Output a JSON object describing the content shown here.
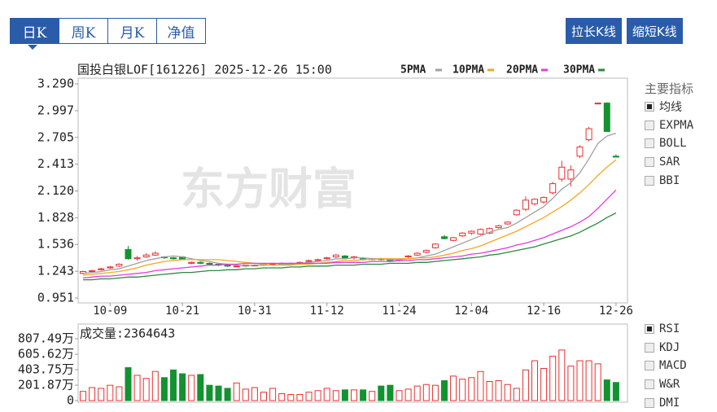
{
  "tabs": [
    "日K",
    "周K",
    "月K",
    "净值"
  ],
  "buttons": [
    "拉长K线",
    "缩短K线"
  ],
  "indicators": {
    "title": "主要指标",
    "main": [
      "均线",
      "EXPMA",
      "BOLL",
      "SAR",
      "BBI"
    ],
    "sub": [
      "RSI",
      "KDJ",
      "MACD",
      "W&R",
      "DMI"
    ]
  },
  "chart_data": [
    {
      "type": "candlestick",
      "title": "国投白银LOF[161226] 2025-12-26 15:00",
      "watermark": "东方财富",
      "up_color": "#e8302f",
      "down_color": "#13932f",
      "categories": [
        null,
        null,
        null,
        "10-09",
        null,
        null,
        null,
        null,
        null,
        null,
        null,
        "10-21",
        null,
        null,
        null,
        null,
        null,
        null,
        null,
        "10-31",
        null,
        null,
        null,
        null,
        null,
        null,
        null,
        "11-12",
        null,
        null,
        null,
        null,
        null,
        null,
        null,
        "11-24",
        null,
        null,
        null,
        null,
        null,
        null,
        null,
        "12-04",
        null,
        null,
        null,
        null,
        null,
        null,
        null,
        "12-16",
        null,
        null,
        null,
        null,
        null,
        null,
        null,
        "12-26"
      ],
      "open": [
        1.22,
        1.24,
        1.26,
        1.28,
        1.3,
        1.48,
        1.38,
        1.4,
        1.42,
        1.4,
        1.39,
        1.4,
        1.33,
        1.34,
        1.33,
        1.32,
        1.31,
        1.3,
        1.3,
        1.31,
        1.31,
        1.32,
        1.32,
        1.33,
        1.33,
        1.35,
        1.36,
        1.38,
        1.4,
        1.41,
        1.39,
        1.38,
        1.37,
        1.38,
        1.37,
        1.36,
        1.4,
        1.42,
        1.45,
        1.5,
        1.62,
        1.58,
        1.63,
        1.66,
        1.65,
        1.66,
        1.72,
        1.76,
        1.86,
        1.92,
        1.98,
        2.0,
        2.1,
        2.25,
        2.25,
        2.5,
        2.68,
        3.08,
        3.08,
        2.5
      ],
      "high": [
        1.25,
        1.26,
        1.28,
        1.3,
        1.33,
        1.52,
        1.41,
        1.44,
        1.46,
        1.41,
        1.4,
        1.41,
        1.35,
        1.35,
        1.34,
        1.33,
        1.32,
        1.31,
        1.31,
        1.32,
        1.33,
        1.33,
        1.34,
        1.34,
        1.35,
        1.37,
        1.38,
        1.4,
        1.43,
        1.42,
        1.41,
        1.39,
        1.39,
        1.39,
        1.38,
        1.38,
        1.42,
        1.45,
        1.48,
        1.55,
        1.64,
        1.62,
        1.67,
        1.69,
        1.71,
        1.72,
        1.75,
        1.79,
        1.92,
        2.06,
        2.04,
        2.06,
        2.22,
        2.45,
        2.4,
        2.62,
        2.82,
        3.08,
        3.09,
        2.52
      ],
      "low": [
        1.21,
        1.23,
        1.25,
        1.27,
        1.29,
        1.37,
        1.36,
        1.39,
        1.41,
        1.38,
        1.37,
        1.37,
        1.32,
        1.32,
        1.31,
        1.3,
        1.29,
        1.29,
        1.29,
        1.3,
        1.3,
        1.31,
        1.31,
        1.32,
        1.32,
        1.34,
        1.35,
        1.37,
        1.39,
        1.38,
        1.37,
        1.36,
        1.36,
        1.36,
        1.35,
        1.35,
        1.39,
        1.41,
        1.44,
        1.49,
        1.59,
        1.57,
        1.62,
        1.64,
        1.64,
        1.65,
        1.71,
        1.75,
        1.85,
        1.9,
        1.96,
        1.98,
        2.08,
        2.22,
        2.17,
        2.48,
        2.66,
        3.08,
        2.77,
        2.49
      ],
      "close": [
        1.24,
        1.25,
        1.27,
        1.29,
        1.32,
        1.38,
        1.39,
        1.42,
        1.44,
        1.39,
        1.38,
        1.37,
        1.34,
        1.33,
        1.32,
        1.31,
        1.3,
        1.3,
        1.31,
        1.31,
        1.32,
        1.32,
        1.33,
        1.33,
        1.34,
        1.36,
        1.37,
        1.39,
        1.42,
        1.39,
        1.4,
        1.37,
        1.38,
        1.37,
        1.36,
        1.37,
        1.41,
        1.44,
        1.47,
        1.54,
        1.6,
        1.61,
        1.66,
        1.68,
        1.7,
        1.71,
        1.74,
        1.78,
        1.91,
        2.02,
        2.03,
        2.05,
        2.2,
        2.38,
        2.35,
        2.6,
        2.8,
        3.08,
        2.77,
        2.49
      ],
      "series": [
        {
          "name": "5PMA",
          "color": "#a0a0a0",
          "values": [
            1.22,
            1.23,
            1.24,
            1.26,
            1.27,
            1.3,
            1.33,
            1.36,
            1.38,
            1.4,
            1.41,
            1.4,
            1.38,
            1.36,
            1.35,
            1.33,
            1.32,
            1.31,
            1.3,
            1.31,
            1.31,
            1.31,
            1.32,
            1.32,
            1.33,
            1.34,
            1.35,
            1.36,
            1.38,
            1.38,
            1.39,
            1.39,
            1.38,
            1.38,
            1.37,
            1.37,
            1.38,
            1.39,
            1.41,
            1.43,
            1.47,
            1.51,
            1.55,
            1.59,
            1.63,
            1.67,
            1.7,
            1.72,
            1.77,
            1.83,
            1.89,
            1.95,
            2.04,
            2.14,
            2.21,
            2.32,
            2.47,
            2.64,
            2.72,
            2.75
          ]
        },
        {
          "name": "10PMA",
          "color": "#f5a623",
          "values": [
            1.2,
            1.21,
            1.22,
            1.23,
            1.24,
            1.26,
            1.28,
            1.31,
            1.33,
            1.35,
            1.36,
            1.37,
            1.37,
            1.37,
            1.37,
            1.37,
            1.36,
            1.35,
            1.34,
            1.33,
            1.32,
            1.31,
            1.31,
            1.31,
            1.32,
            1.32,
            1.33,
            1.34,
            1.35,
            1.36,
            1.36,
            1.37,
            1.37,
            1.38,
            1.38,
            1.38,
            1.38,
            1.39,
            1.39,
            1.4,
            1.42,
            1.44,
            1.47,
            1.49,
            1.52,
            1.56,
            1.6,
            1.64,
            1.68,
            1.73,
            1.78,
            1.83,
            1.89,
            1.95,
            2.02,
            2.1,
            2.19,
            2.29,
            2.38,
            2.46
          ]
        },
        {
          "name": "20PMA",
          "color": "#e23be2",
          "values": [
            1.17,
            1.18,
            1.19,
            1.19,
            1.2,
            1.21,
            1.22,
            1.23,
            1.25,
            1.26,
            1.27,
            1.28,
            1.29,
            1.3,
            1.31,
            1.31,
            1.32,
            1.32,
            1.33,
            1.33,
            1.33,
            1.33,
            1.33,
            1.33,
            1.33,
            1.33,
            1.33,
            1.33,
            1.34,
            1.34,
            1.34,
            1.34,
            1.35,
            1.35,
            1.35,
            1.36,
            1.36,
            1.37,
            1.37,
            1.38,
            1.39,
            1.4,
            1.41,
            1.43,
            1.44,
            1.46,
            1.48,
            1.5,
            1.53,
            1.55,
            1.58,
            1.61,
            1.65,
            1.69,
            1.73,
            1.78,
            1.84,
            1.93,
            2.03,
            2.13
          ]
        },
        {
          "name": "30PMA",
          "color": "#2b8a3e",
          "values": [
            1.15,
            1.15,
            1.16,
            1.16,
            1.17,
            1.18,
            1.18,
            1.19,
            1.2,
            1.21,
            1.22,
            1.23,
            1.23,
            1.24,
            1.25,
            1.25,
            1.26,
            1.26,
            1.27,
            1.27,
            1.28,
            1.28,
            1.28,
            1.29,
            1.29,
            1.3,
            1.3,
            1.3,
            1.31,
            1.31,
            1.31,
            1.32,
            1.32,
            1.32,
            1.33,
            1.33,
            1.33,
            1.34,
            1.34,
            1.35,
            1.36,
            1.37,
            1.38,
            1.39,
            1.4,
            1.42,
            1.43,
            1.45,
            1.47,
            1.49,
            1.51,
            1.54,
            1.57,
            1.6,
            1.63,
            1.67,
            1.72,
            1.77,
            1.83,
            1.88
          ]
        }
      ],
      "ylim": [
        0.951,
        {
          "value": 3.29,
          "label": "3.290"
        }
      ],
      "yticks": [
        0.951,
        1.243,
        1.536,
        1.828,
        {
          "value": 2.12,
          "label": "2.120"
        },
        2.413,
        2.705,
        2.997,
        {
          "value": 3.29,
          "label": "3.290"
        }
      ]
    },
    {
      "type": "bar",
      "title": "成交量:2364643",
      "values": [
        120,
        170,
        160,
        200,
        180,
        430,
        330,
        290,
        380,
        300,
        400,
        350,
        330,
        340,
        200,
        190,
        160,
        230,
        150,
        170,
        110,
        160,
        90,
        80,
        80,
        110,
        130,
        160,
        130,
        140,
        140,
        140,
        120,
        190,
        200,
        130,
        150,
        190,
        210,
        200,
        260,
        320,
        280,
        300,
        380,
        250,
        260,
        210,
        160,
        400,
        520,
        420,
        580,
        660,
        450,
        520,
        520,
        480,
        270,
        236.4643
      ],
      "ylim": [
        0,
        807.49
      ],
      "yticks": [
        0,
        {
          "value": 201.87,
          "label": "201.87万"
        },
        {
          "value": 403.75,
          "label": "403.75万"
        },
        {
          "value": 605.62,
          "label": "605.62万"
        },
        {
          "value": 807.49,
          "label": "807.49万"
        }
      ]
    }
  ]
}
